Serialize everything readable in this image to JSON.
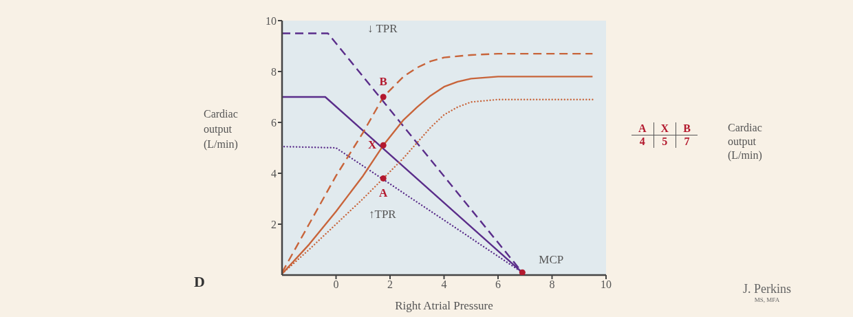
{
  "chart_data": {
    "type": "line",
    "xlabel": "Right Atrial Pressure",
    "ylabel": "Cardiac output (L/min)",
    "xlim": [
      -2,
      10
    ],
    "xticks": [
      0,
      2,
      4,
      6,
      8,
      10
    ],
    "ylim": [
      0,
      10
    ],
    "yticks": [
      2,
      4,
      6,
      8,
      10
    ],
    "grid": false,
    "marker": "none",
    "series": [
      {
        "color": "#5a2d8a",
        "line_style": "dashed",
        "x": [
          -2,
          -0.3,
          6.9
        ],
        "values": [
          9.5,
          9.5,
          0.1
        ]
      },
      {
        "color": "#5a2d8a",
        "line_style": "solid",
        "x": [
          -2,
          -0.4,
          6.9
        ],
        "values": [
          7,
          7,
          0.1
        ]
      },
      {
        "color": "#5a2d8a",
        "line_style": "dotted",
        "x": [
          -2,
          0,
          6.9
        ],
        "values": [
          5.05,
          5,
          0.1
        ]
      },
      {
        "color": "#c8643a",
        "line_style": "dashed",
        "x": [
          -2,
          -1,
          0,
          1,
          1.75,
          2.5,
          3,
          3.5,
          4,
          5,
          6,
          9.5
        ],
        "values": [
          0.1,
          2,
          3.9,
          5.6,
          7,
          7.8,
          8.15,
          8.4,
          8.55,
          8.65,
          8.7,
          8.7
        ]
      },
      {
        "color": "#c8643a",
        "line_style": "solid",
        "x": [
          -2,
          -1,
          0,
          1,
          1.75,
          2.5,
          3,
          3.5,
          4,
          4.5,
          5,
          6,
          9.5
        ],
        "values": [
          0.05,
          1.2,
          2.5,
          3.9,
          5.1,
          6.1,
          6.6,
          7.05,
          7.4,
          7.6,
          7.72,
          7.8,
          7.8
        ]
      },
      {
        "color": "#c8643a",
        "line_style": "dotted",
        "x": [
          -2,
          -1,
          0,
          1,
          1.75,
          2.5,
          3,
          3.5,
          4,
          4.5,
          5,
          6,
          9.5
        ],
        "values": [
          0.05,
          1,
          2,
          3,
          3.8,
          4.6,
          5.2,
          5.8,
          6.3,
          6.6,
          6.8,
          6.9,
          6.9
        ]
      },
      {
        "type": "scatter",
        "marker": "circle",
        "color": "#b3192e",
        "x": [
          1.75,
          1.75,
          1.75,
          6.9
        ],
        "values": [
          3.8,
          5.1,
          7,
          0.1
        ]
      }
    ],
    "annotations": [
      "D",
      "↓ TPR",
      "↑TPR",
      "A",
      "X",
      "B",
      "MCP",
      "A",
      "X",
      "B",
      "4",
      "5",
      "7",
      "Cardiac output (L/min)",
      "J. Perkins",
      "MS, MFA"
    ]
  }
}
